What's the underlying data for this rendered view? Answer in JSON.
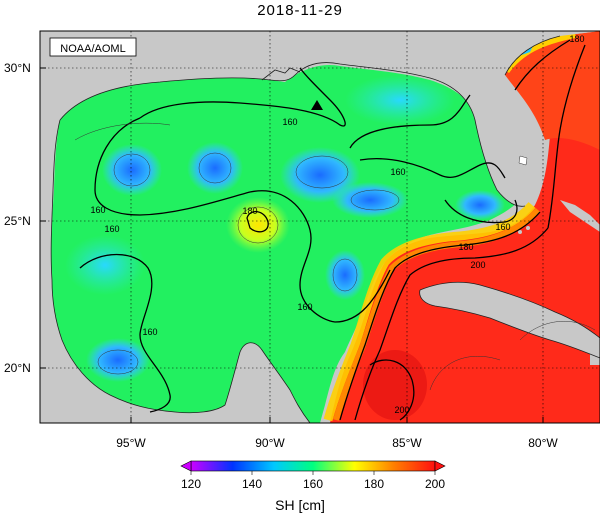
{
  "title": "2018-11-29",
  "credit": "NOAA/AOML",
  "y_axis_labels": [
    "30°N",
    "25°N",
    "20°N"
  ],
  "x_axis_labels": [
    "95°W",
    "90°W",
    "85°W",
    "80°W"
  ],
  "contour_labels": [
    "160",
    "160",
    "160",
    "160",
    "180",
    "160",
    "180",
    "160",
    "200",
    "200",
    "160",
    "180"
  ],
  "colorbar": {
    "ticks": [
      "120",
      "140",
      "160",
      "180",
      "200"
    ],
    "label": "SH [cm]",
    "stops": [
      "#cc00ff",
      "#0033ff",
      "#00c8ff",
      "#00ff80",
      "#ffff00",
      "#ff8000",
      "#ff1010"
    ]
  },
  "colors": {
    "land": "#c8c8c8",
    "gulf": "#22f060",
    "warm": "#ff2a1a",
    "cool": "#2aa0ff"
  }
}
